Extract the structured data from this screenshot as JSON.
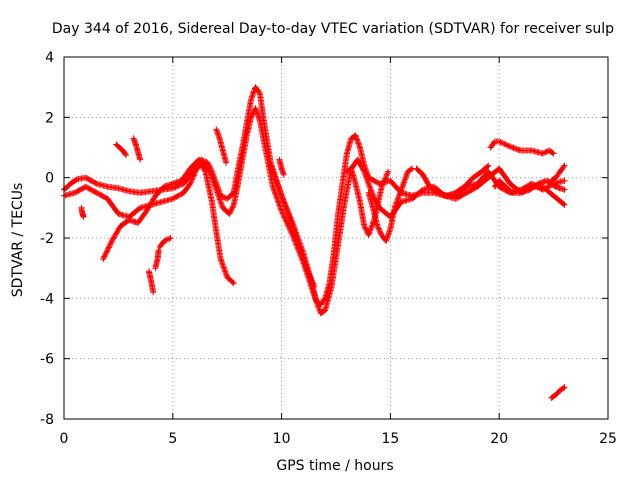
{
  "chart_data": {
    "type": "scatter",
    "title": "Day 344 of 2016, Sidereal Day-to-day VTEC variation (SDTVAR) for receiver sulp",
    "xlabel": "GPS time / hours",
    "ylabel": "SDTVAR / TECUs",
    "xlim": [
      0,
      25
    ],
    "ylim": [
      -8,
      4
    ],
    "xticks": [
      0,
      5,
      10,
      15,
      20,
      25
    ],
    "yticks": [
      -8,
      -6,
      -4,
      -2,
      0,
      2,
      4
    ],
    "grid": true,
    "marker": "+",
    "series": [
      {
        "name": "SDTVAR",
        "color": "#ff0000",
        "segments": [
          {
            "points": [
              [
                0.0,
                -0.4
              ],
              [
                0.3,
                -0.2
              ],
              [
                0.6,
                -0.05
              ],
              [
                1.0,
                0.0
              ],
              [
                1.5,
                -0.2
              ],
              [
                2.0,
                -0.3
              ],
              [
                2.5,
                -0.35
              ],
              [
                3.0,
                -0.45
              ],
              [
                3.5,
                -0.5
              ],
              [
                4.0,
                -0.45
              ],
              [
                4.5,
                -0.4
              ],
              [
                5.0,
                -0.35
              ],
              [
                5.5,
                -0.2
              ],
              [
                6.0,
                0.3
              ],
              [
                6.3,
                0.6
              ],
              [
                6.6,
                0.5
              ],
              [
                6.8,
                0.2
              ],
              [
                7.2,
                -0.6
              ],
              [
                7.5,
                -0.7
              ],
              [
                7.8,
                -0.5
              ],
              [
                8.0,
                0.3
              ],
              [
                8.2,
                1.0
              ],
              [
                8.4,
                1.8
              ],
              [
                8.6,
                2.6
              ],
              [
                8.8,
                3.0
              ],
              [
                9.0,
                2.8
              ],
              [
                9.2,
                1.8
              ],
              [
                9.5,
                0.5
              ],
              [
                10.0,
                -0.6
              ],
              [
                10.5,
                -1.5
              ],
              [
                11.0,
                -2.5
              ],
              [
                11.4,
                -3.5
              ],
              [
                11.6,
                -4.1
              ],
              [
                11.8,
                -4.2
              ],
              [
                12.0,
                -4.0
              ],
              [
                12.2,
                -3.5
              ],
              [
                12.4,
                -2.5
              ],
              [
                12.6,
                -1.2
              ],
              [
                12.8,
                -0.2
              ],
              [
                13.0,
                0.8
              ],
              [
                13.2,
                1.3
              ],
              [
                13.4,
                1.4
              ],
              [
                13.6,
                1.0
              ],
              [
                13.8,
                0.4
              ],
              [
                14.0,
                0.0
              ],
              [
                14.5,
                -0.2
              ],
              [
                15.0,
                -0.1
              ],
              [
                15.5,
                -0.5
              ],
              [
                16.0,
                -0.6
              ],
              [
                16.5,
                -0.5
              ],
              [
                17.0,
                -0.5
              ],
              [
                17.5,
                -0.6
              ],
              [
                18.0,
                -0.6
              ],
              [
                18.5,
                -0.3
              ],
              [
                19.0,
                -0.2
              ],
              [
                19.5,
                0.2
              ],
              [
                20.0,
                -0.3
              ],
              [
                20.5,
                -0.5
              ],
              [
                21.0,
                -0.4
              ],
              [
                21.5,
                -0.2
              ],
              [
                22.0,
                -0.4
              ],
              [
                22.5,
                -0.2
              ],
              [
                23.0,
                -0.1
              ]
            ]
          },
          {
            "points": [
              [
                0.0,
                -0.6
              ],
              [
                0.5,
                -0.5
              ],
              [
                1.0,
                -0.3
              ],
              [
                1.5,
                -0.5
              ],
              [
                2.0,
                -0.7
              ],
              [
                2.5,
                -1.2
              ],
              [
                3.0,
                -1.3
              ],
              [
                3.5,
                -1.0
              ],
              [
                4.0,
                -0.9
              ],
              [
                4.5,
                -0.8
              ],
              [
                5.0,
                -0.7
              ],
              [
                5.5,
                -0.5
              ],
              [
                5.8,
                -0.2
              ],
              [
                6.1,
                0.3
              ],
              [
                6.4,
                0.5
              ],
              [
                6.7,
                0.2
              ],
              [
                7.0,
                -0.4
              ],
              [
                7.3,
                -1.0
              ],
              [
                7.6,
                -1.2
              ],
              [
                7.8,
                -0.9
              ],
              [
                8.0,
                -0.2
              ],
              [
                8.2,
                0.6
              ],
              [
                8.4,
                1.4
              ],
              [
                8.6,
                2.0
              ],
              [
                8.8,
                2.3
              ],
              [
                9.0,
                1.9
              ],
              [
                9.3,
                0.8
              ],
              [
                9.6,
                -0.3
              ],
              [
                10.0,
                -1.1
              ],
              [
                10.5,
                -1.9
              ],
              [
                11.0,
                -2.8
              ],
              [
                11.5,
                -3.9
              ],
              [
                11.8,
                -4.5
              ],
              [
                12.0,
                -4.4
              ],
              [
                12.3,
                -3.6
              ],
              [
                12.6,
                -2.2
              ],
              [
                12.9,
                -0.8
              ],
              [
                13.2,
                0.3
              ],
              [
                13.5,
                0.6
              ],
              [
                13.8,
                0.2
              ],
              [
                14.2,
                -0.6
              ],
              [
                14.5,
                -1.0
              ],
              [
                15.0,
                -1.3
              ],
              [
                15.5,
                -0.8
              ],
              [
                16.0,
                -0.7
              ],
              [
                16.5,
                -0.4
              ],
              [
                17.0,
                -0.3
              ],
              [
                17.5,
                -0.6
              ],
              [
                18.0,
                -0.7
              ],
              [
                18.5,
                -0.5
              ],
              [
                19.0,
                -0.3
              ],
              [
                19.5,
                0.0
              ],
              [
                20.0,
                0.3
              ],
              [
                20.5,
                -0.2
              ],
              [
                21.0,
                -0.5
              ],
              [
                21.5,
                -0.3
              ],
              [
                22.0,
                -0.3
              ],
              [
                22.5,
                -0.6
              ],
              [
                23.0,
                -0.9
              ]
            ]
          },
          {
            "points": [
              [
                1.8,
                -2.7
              ],
              [
                2.2,
                -2.1
              ],
              [
                2.6,
                -1.6
              ],
              [
                3.0,
                -1.4
              ],
              [
                3.4,
                -1.5
              ],
              [
                3.8,
                -1.1
              ],
              [
                4.2,
                -0.6
              ],
              [
                4.6,
                -0.3
              ],
              [
                5.0,
                -0.2
              ],
              [
                5.4,
                -0.1
              ],
              [
                5.8,
                0.3
              ],
              [
                6.2,
                0.6
              ],
              [
                6.5,
                0.2
              ],
              [
                6.8,
                -0.8
              ],
              [
                7.0,
                -1.8
              ],
              [
                7.2,
                -2.7
              ],
              [
                7.5,
                -3.3
              ],
              [
                7.8,
                -3.5
              ]
            ]
          },
          {
            "points": [
              [
                9.5,
                0.4
              ],
              [
                9.8,
                -0.2
              ],
              [
                10.0,
                -0.6
              ],
              [
                10.4,
                -1.4
              ],
              [
                10.8,
                -2.3
              ],
              [
                11.2,
                -3.1
              ],
              [
                11.5,
                -3.6
              ]
            ]
          },
          {
            "points": [
              [
                13.0,
                0.2
              ],
              [
                13.2,
                0.3
              ],
              [
                13.4,
                -0.2
              ],
              [
                13.6,
                -0.8
              ],
              [
                13.8,
                -1.6
              ],
              [
                14.0,
                -1.9
              ],
              [
                14.3,
                -1.3
              ],
              [
                14.6,
                -0.3
              ],
              [
                14.9,
                0.2
              ]
            ]
          },
          {
            "points": [
              [
                14.0,
                -0.5
              ],
              [
                14.2,
                -1.0
              ],
              [
                14.4,
                -1.6
              ],
              [
                14.6,
                -1.9
              ],
              [
                14.8,
                -2.1
              ],
              [
                15.0,
                -1.7
              ],
              [
                15.2,
                -1.0
              ],
              [
                15.4,
                -0.6
              ],
              [
                15.6,
                -0.2
              ],
              [
                15.8,
                0.2
              ],
              [
                16.0,
                0.3
              ]
            ]
          },
          {
            "points": [
              [
                16.2,
                0.3
              ],
              [
                16.5,
                0.1
              ],
              [
                16.8,
                -0.3
              ],
              [
                17.2,
                -0.5
              ],
              [
                17.6,
                -0.6
              ],
              [
                18.0,
                -0.5
              ],
              [
                18.4,
                -0.3
              ],
              [
                18.8,
                0.0
              ],
              [
                19.2,
                0.2
              ],
              [
                19.5,
                0.4
              ]
            ]
          },
          {
            "points": [
              [
                19.6,
                1.0
              ],
              [
                19.8,
                1.2
              ],
              [
                20.0,
                1.2
              ],
              [
                20.3,
                1.1
              ],
              [
                20.6,
                1.0
              ],
              [
                21.0,
                0.9
              ],
              [
                21.5,
                0.9
              ],
              [
                22.0,
                0.8
              ],
              [
                22.3,
                0.9
              ],
              [
                22.5,
                0.8
              ]
            ]
          },
          {
            "points": [
              [
                19.8,
                -0.3
              ],
              [
                20.0,
                -0.1
              ],
              [
                20.3,
                -0.3
              ],
              [
                20.6,
                -0.5
              ],
              [
                21.0,
                -0.5
              ],
              [
                21.4,
                -0.4
              ],
              [
                21.8,
                -0.2
              ],
              [
                22.2,
                -0.1
              ],
              [
                22.6,
                -0.3
              ],
              [
                23.0,
                -0.4
              ]
            ]
          },
          {
            "points": [
              [
                22.4,
                -0.1
              ],
              [
                22.6,
                0.0
              ],
              [
                22.8,
                0.2
              ],
              [
                23.0,
                0.4
              ]
            ]
          },
          {
            "points": [
              [
                2.4,
                1.1
              ],
              [
                2.55,
                1.0
              ],
              [
                2.7,
                0.9
              ],
              [
                2.85,
                0.75
              ]
            ]
          },
          {
            "points": [
              [
                3.2,
                1.3
              ],
              [
                3.3,
                1.1
              ],
              [
                3.4,
                0.85
              ],
              [
                3.5,
                0.6
              ]
            ]
          },
          {
            "points": [
              [
                7.0,
                1.6
              ],
              [
                7.15,
                1.3
              ],
              [
                7.3,
                0.9
              ],
              [
                7.45,
                0.5
              ]
            ]
          },
          {
            "points": [
              [
                9.9,
                0.6
              ],
              [
                10.0,
                0.3
              ],
              [
                10.1,
                0.1
              ]
            ]
          },
          {
            "points": [
              [
                0.8,
                -1.0
              ],
              [
                0.85,
                -1.2
              ],
              [
                0.9,
                -1.3
              ]
            ]
          },
          {
            "points": [
              [
                3.9,
                -3.1
              ],
              [
                4.0,
                -3.4
              ],
              [
                4.1,
                -3.8
              ]
            ]
          },
          {
            "points": [
              [
                4.2,
                -3.0
              ],
              [
                4.3,
                -2.7
              ],
              [
                4.35,
                -2.4
              ]
            ]
          },
          {
            "points": [
              [
                4.4,
                -2.3
              ],
              [
                4.6,
                -2.1
              ],
              [
                4.9,
                -2.0
              ]
            ]
          },
          {
            "points": [
              [
                22.4,
                -7.3
              ],
              [
                22.6,
                -7.2
              ],
              [
                22.8,
                -7.05
              ],
              [
                23.0,
                -6.95
              ]
            ]
          }
        ]
      }
    ]
  }
}
